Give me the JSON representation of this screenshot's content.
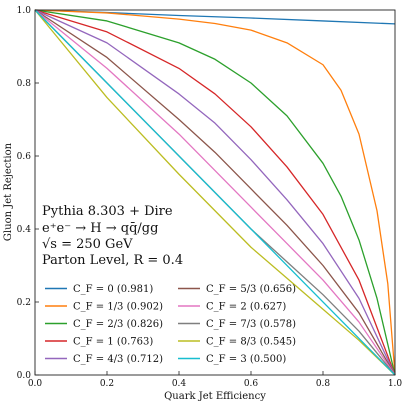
{
  "chart_data": {
    "type": "line",
    "xlabel": "Quark Jet Efficiency",
    "ylabel": "Gluon Jet Rejection",
    "xlim": [
      0,
      1
    ],
    "ylim": [
      0,
      1
    ],
    "xticks": [
      "0.0",
      "0.2",
      "0.4",
      "0.6",
      "0.8",
      "1.0"
    ],
    "yticks": [
      "0.0",
      "0.2",
      "0.4",
      "0.6",
      "0.8",
      "1.0"
    ],
    "grid": false,
    "legend_position": "bottom-left",
    "annotation": [
      "Pythia 8.303 + Dire",
      "e⁺e⁻ → H → qq̄/gg",
      "√s = 250 GeV",
      "Parton Level, R = 0.4"
    ],
    "series": [
      {
        "label": "C_F = 0 (0.981)",
        "color": "#1f77b4",
        "x": [
          0,
          0.2,
          0.4,
          0.6,
          0.8,
          1.0
        ],
        "y": [
          1.0,
          0.993,
          0.985,
          0.978,
          0.97,
          0.962
        ]
      },
      {
        "label": "C_F = 1/3 (0.902)",
        "color": "#ff7f0e",
        "x": [
          0,
          0.2,
          0.4,
          0.5,
          0.6,
          0.7,
          0.8,
          0.85,
          0.9,
          0.95,
          0.98,
          1.0
        ],
        "y": [
          1.0,
          0.992,
          0.975,
          0.963,
          0.945,
          0.91,
          0.85,
          0.78,
          0.66,
          0.45,
          0.25,
          0.0
        ]
      },
      {
        "label": "C_F = 2/3 (0.826)",
        "color": "#2ca02c",
        "x": [
          0,
          0.2,
          0.4,
          0.5,
          0.6,
          0.7,
          0.8,
          0.85,
          0.9,
          0.95,
          1.0
        ],
        "y": [
          1.0,
          0.97,
          0.91,
          0.865,
          0.8,
          0.71,
          0.58,
          0.49,
          0.37,
          0.21,
          0.0
        ]
      },
      {
        "label": "C_F = 1 (0.763)",
        "color": "#d62728",
        "x": [
          0,
          0.2,
          0.4,
          0.5,
          0.6,
          0.7,
          0.8,
          0.9,
          1.0
        ],
        "y": [
          1.0,
          0.94,
          0.84,
          0.77,
          0.68,
          0.57,
          0.44,
          0.26,
          0.0
        ]
      },
      {
        "label": "C_F = 4/3 (0.712)",
        "color": "#9467bd",
        "x": [
          0,
          0.2,
          0.4,
          0.5,
          0.6,
          0.7,
          0.8,
          0.9,
          1.0
        ],
        "y": [
          1.0,
          0.91,
          0.77,
          0.69,
          0.59,
          0.48,
          0.36,
          0.21,
          0.0
        ]
      },
      {
        "label": "C_F = 5/3 (0.656)",
        "color": "#8c564b",
        "x": [
          0,
          0.2,
          0.4,
          0.5,
          0.6,
          0.7,
          0.8,
          0.9,
          1.0
        ],
        "y": [
          1.0,
          0.87,
          0.7,
          0.61,
          0.51,
          0.41,
          0.3,
          0.17,
          0.0
        ]
      },
      {
        "label": "C_F = 2 (0.627)",
        "color": "#e377c2",
        "x": [
          0,
          0.2,
          0.4,
          0.5,
          0.6,
          0.7,
          0.8,
          0.9,
          1.0
        ],
        "y": [
          1.0,
          0.84,
          0.66,
          0.56,
          0.46,
          0.36,
          0.26,
          0.145,
          0.0
        ]
      },
      {
        "label": "C_F = 7/3 (0.578)",
        "color": "#7f7f7f",
        "x": [
          0,
          0.2,
          0.4,
          0.5,
          0.6,
          0.7,
          0.8,
          0.9,
          1.0
        ],
        "y": [
          1.0,
          0.8,
          0.6,
          0.5,
          0.4,
          0.31,
          0.22,
          0.12,
          0.0
        ]
      },
      {
        "label": "C_F = 8/3 (0.545)",
        "color": "#bcbd22",
        "x": [
          0,
          0.2,
          0.4,
          0.5,
          0.6,
          0.7,
          0.8,
          0.9,
          1.0
        ],
        "y": [
          1.0,
          0.76,
          0.55,
          0.45,
          0.35,
          0.265,
          0.18,
          0.095,
          0.0
        ]
      },
      {
        "label": "C_F = 3 (0.500)",
        "color": "#17becf",
        "x": [
          0,
          1.0
        ],
        "y": [
          1.0,
          0.0
        ]
      }
    ]
  }
}
